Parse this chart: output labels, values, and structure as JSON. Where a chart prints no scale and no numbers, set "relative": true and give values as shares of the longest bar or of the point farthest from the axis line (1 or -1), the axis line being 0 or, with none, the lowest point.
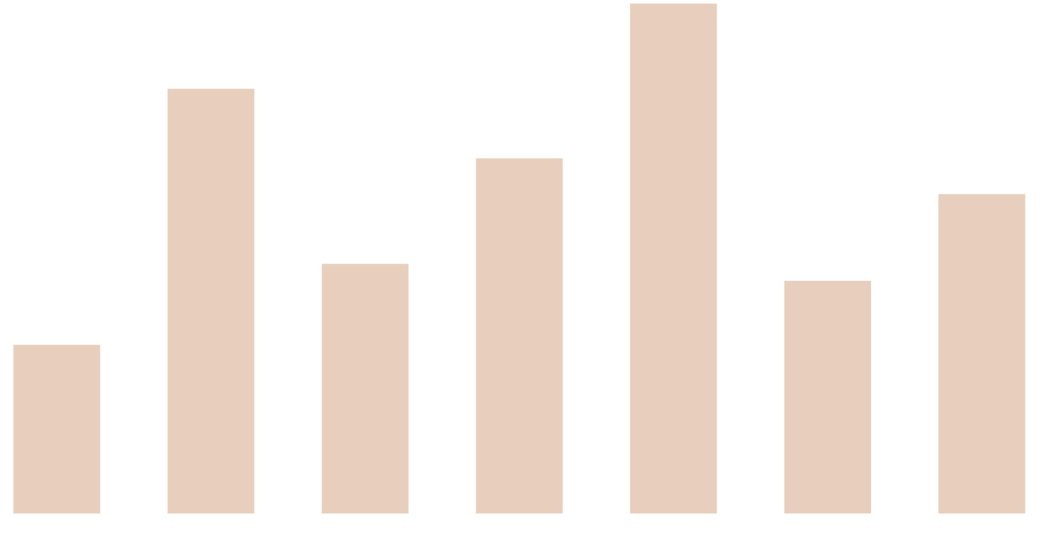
{
  "chart_data": {
    "type": "bar",
    "relative": true,
    "categories": [
      null,
      null,
      null,
      null,
      null,
      null,
      null
    ],
    "values": [
      0.334,
      0.834,
      0.492,
      0.698,
      1,
      0.459,
      0.628
    ],
    "color": "#e8cfbd"
  }
}
